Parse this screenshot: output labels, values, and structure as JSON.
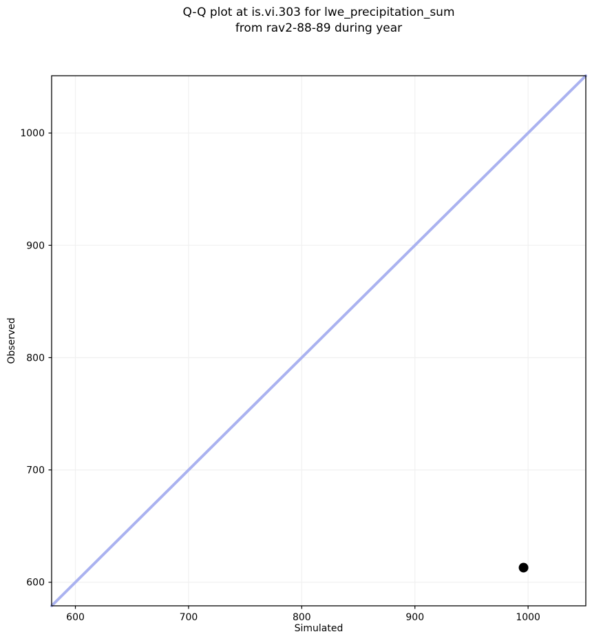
{
  "chart_data": {
    "type": "scatter",
    "title_line1": "Q-Q plot at is.vi.303 for lwe_precipitation_sum",
    "title_line2": "from rav2-88-89 during year",
    "xlabel": "Simulated",
    "ylabel": "Observed",
    "xlim": [
      579,
      1051
    ],
    "ylim": [
      579,
      1051
    ],
    "xticks": [
      600,
      700,
      800,
      900,
      1000
    ],
    "yticks": [
      600,
      700,
      800,
      900,
      1000
    ],
    "grid": true,
    "grid_color": "#f0f0f0",
    "background_color": "#ffffff",
    "spine_color": "#000000",
    "identity_line": {
      "start": 579,
      "end": 1051,
      "color": "#aab2f0",
      "width": 4
    },
    "points": [
      {
        "x": 996,
        "y": 613
      }
    ],
    "point_color": "#000000",
    "point_radius": 7,
    "legend": "none"
  }
}
